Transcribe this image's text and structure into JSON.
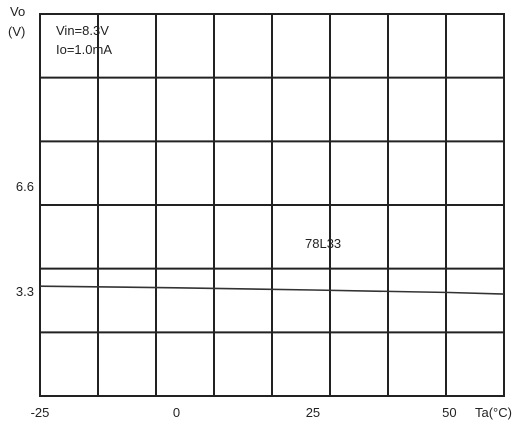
{
  "chart_data": {
    "type": "line",
    "title": "",
    "ylabel": "Vo",
    "yunit": "(V)",
    "xlabel": "Ta(°C)",
    "xlim": [
      -25,
      60
    ],
    "ylim": [
      0,
      12
    ],
    "grid": true,
    "annotations": [
      "Vin=8.3V",
      "Io=1.0mA"
    ],
    "x_tick_labels": [
      {
        "value": -25,
        "label": "-25"
      },
      {
        "value": 0,
        "label": "0"
      },
      {
        "value": 25,
        "label": "25"
      },
      {
        "value": 50,
        "label": "50"
      }
    ],
    "y_tick_labels": [
      {
        "value": 6.6,
        "label": "6.6"
      },
      {
        "value": 3.3,
        "label": "3.3"
      }
    ],
    "series": [
      {
        "name": "78L33",
        "x": [
          -25,
          0,
          25,
          50,
          60
        ],
        "y": [
          3.45,
          3.4,
          3.33,
          3.25,
          3.2
        ]
      }
    ]
  }
}
